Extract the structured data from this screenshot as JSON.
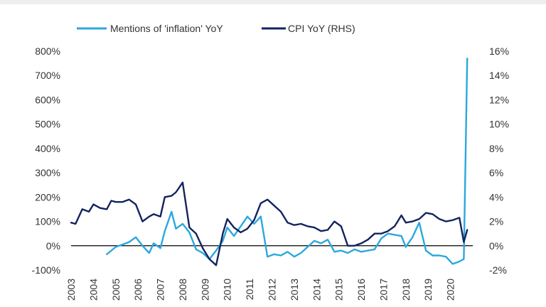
{
  "chart_data": {
    "type": "line",
    "title": "",
    "xlabel": "",
    "ylabel": "",
    "y2label": "",
    "xlim": [
      2003,
      2021
    ],
    "x_ticks": [
      "2003",
      "2004",
      "2005",
      "2006",
      "2007",
      "2008",
      "2009",
      "2010",
      "2011",
      "2012",
      "2013",
      "2014",
      "2015",
      "2016",
      "2017",
      "2018",
      "2019",
      "2020"
    ],
    "ylim_left": [
      -100,
      800
    ],
    "y_ticks_left": [
      "800%",
      "700%",
      "600%",
      "500%",
      "400%",
      "300%",
      "200%",
      "100%",
      "0%",
      "-100%"
    ],
    "ylim_right": [
      -2,
      16
    ],
    "y_ticks_right": [
      "16%",
      "14%",
      "12%",
      "10%",
      "8%",
      "6%",
      "4%",
      "2%",
      "0%",
      "-2%"
    ],
    "grid": false,
    "legend_placement": "top",
    "zero_line": true,
    "series": [
      {
        "name": "Mentions of 'inflation' YoY",
        "axis": "left",
        "color": "#2aa8dd",
        "x": [
          2004.6,
          2005.0,
          2005.3,
          2005.6,
          2005.9,
          2006.2,
          2006.5,
          2006.7,
          2007.0,
          2007.2,
          2007.5,
          2007.7,
          2008.0,
          2008.3,
          2008.6,
          2008.9,
          2009.2,
          2009.5,
          2009.8,
          2010.0,
          2010.3,
          2010.6,
          2010.9,
          2011.2,
          2011.5,
          2011.8,
          2012.1,
          2012.4,
          2012.7,
          2013.0,
          2013.3,
          2013.6,
          2013.9,
          2014.2,
          2014.5,
          2014.8,
          2015.1,
          2015.4,
          2015.7,
          2016.0,
          2016.3,
          2016.6,
          2016.9,
          2017.2,
          2017.5,
          2017.8,
          2018.0,
          2018.3,
          2018.6,
          2018.9,
          2019.2,
          2019.5,
          2019.8,
          2020.1,
          2020.4,
          2020.6,
          2020.75
        ],
        "y": [
          -35,
          -5,
          5,
          15,
          35,
          0,
          -30,
          10,
          -10,
          60,
          140,
          70,
          90,
          55,
          -15,
          -30,
          -55,
          -20,
          20,
          75,
          40,
          80,
          120,
          90,
          120,
          -45,
          -35,
          -40,
          -25,
          -45,
          -30,
          -5,
          20,
          10,
          25,
          -25,
          -20,
          -30,
          -15,
          -25,
          -20,
          -15,
          30,
          50,
          45,
          40,
          -5,
          35,
          95,
          -20,
          -40,
          -40,
          -45,
          -75,
          -65,
          -55,
          770
        ]
      },
      {
        "name": "CPI YoY (RHS)",
        "axis": "right",
        "color": "#14235f",
        "x": [
          2003.0,
          2003.2,
          2003.5,
          2003.8,
          2004.0,
          2004.3,
          2004.6,
          2004.8,
          2005.0,
          2005.3,
          2005.6,
          2005.9,
          2006.2,
          2006.5,
          2006.7,
          2007.0,
          2007.2,
          2007.5,
          2007.7,
          2008.0,
          2008.3,
          2008.6,
          2008.9,
          2009.2,
          2009.5,
          2009.8,
          2010.0,
          2010.3,
          2010.6,
          2010.9,
          2011.2,
          2011.5,
          2011.8,
          2012.1,
          2012.4,
          2012.7,
          2013.0,
          2013.3,
          2013.6,
          2013.9,
          2014.2,
          2014.5,
          2014.8,
          2015.1,
          2015.4,
          2015.7,
          2016.0,
          2016.3,
          2016.6,
          2016.9,
          2017.2,
          2017.5,
          2017.8,
          2018.0,
          2018.3,
          2018.6,
          2018.9,
          2019.2,
          2019.5,
          2019.8,
          2020.1,
          2020.4,
          2020.6,
          2020.75
        ],
        "y": [
          1.9,
          1.8,
          3.0,
          2.8,
          3.4,
          3.1,
          3.0,
          3.7,
          3.6,
          3.6,
          3.8,
          3.4,
          2.0,
          2.4,
          2.6,
          2.4,
          4.0,
          4.1,
          4.4,
          5.2,
          1.5,
          1.0,
          -0.2,
          -1.1,
          -1.6,
          1.0,
          2.2,
          1.5,
          1.1,
          1.4,
          2.1,
          3.5,
          3.8,
          3.3,
          2.8,
          1.9,
          1.7,
          1.8,
          1.6,
          1.5,
          1.2,
          1.3,
          2.0,
          1.6,
          0.0,
          0.0,
          0.2,
          0.5,
          1.0,
          1.0,
          1.2,
          1.6,
          2.5,
          1.9,
          2.0,
          2.2,
          2.7,
          2.6,
          2.2,
          2.0,
          2.1,
          2.3,
          0.3,
          1.3
        ]
      }
    ]
  }
}
